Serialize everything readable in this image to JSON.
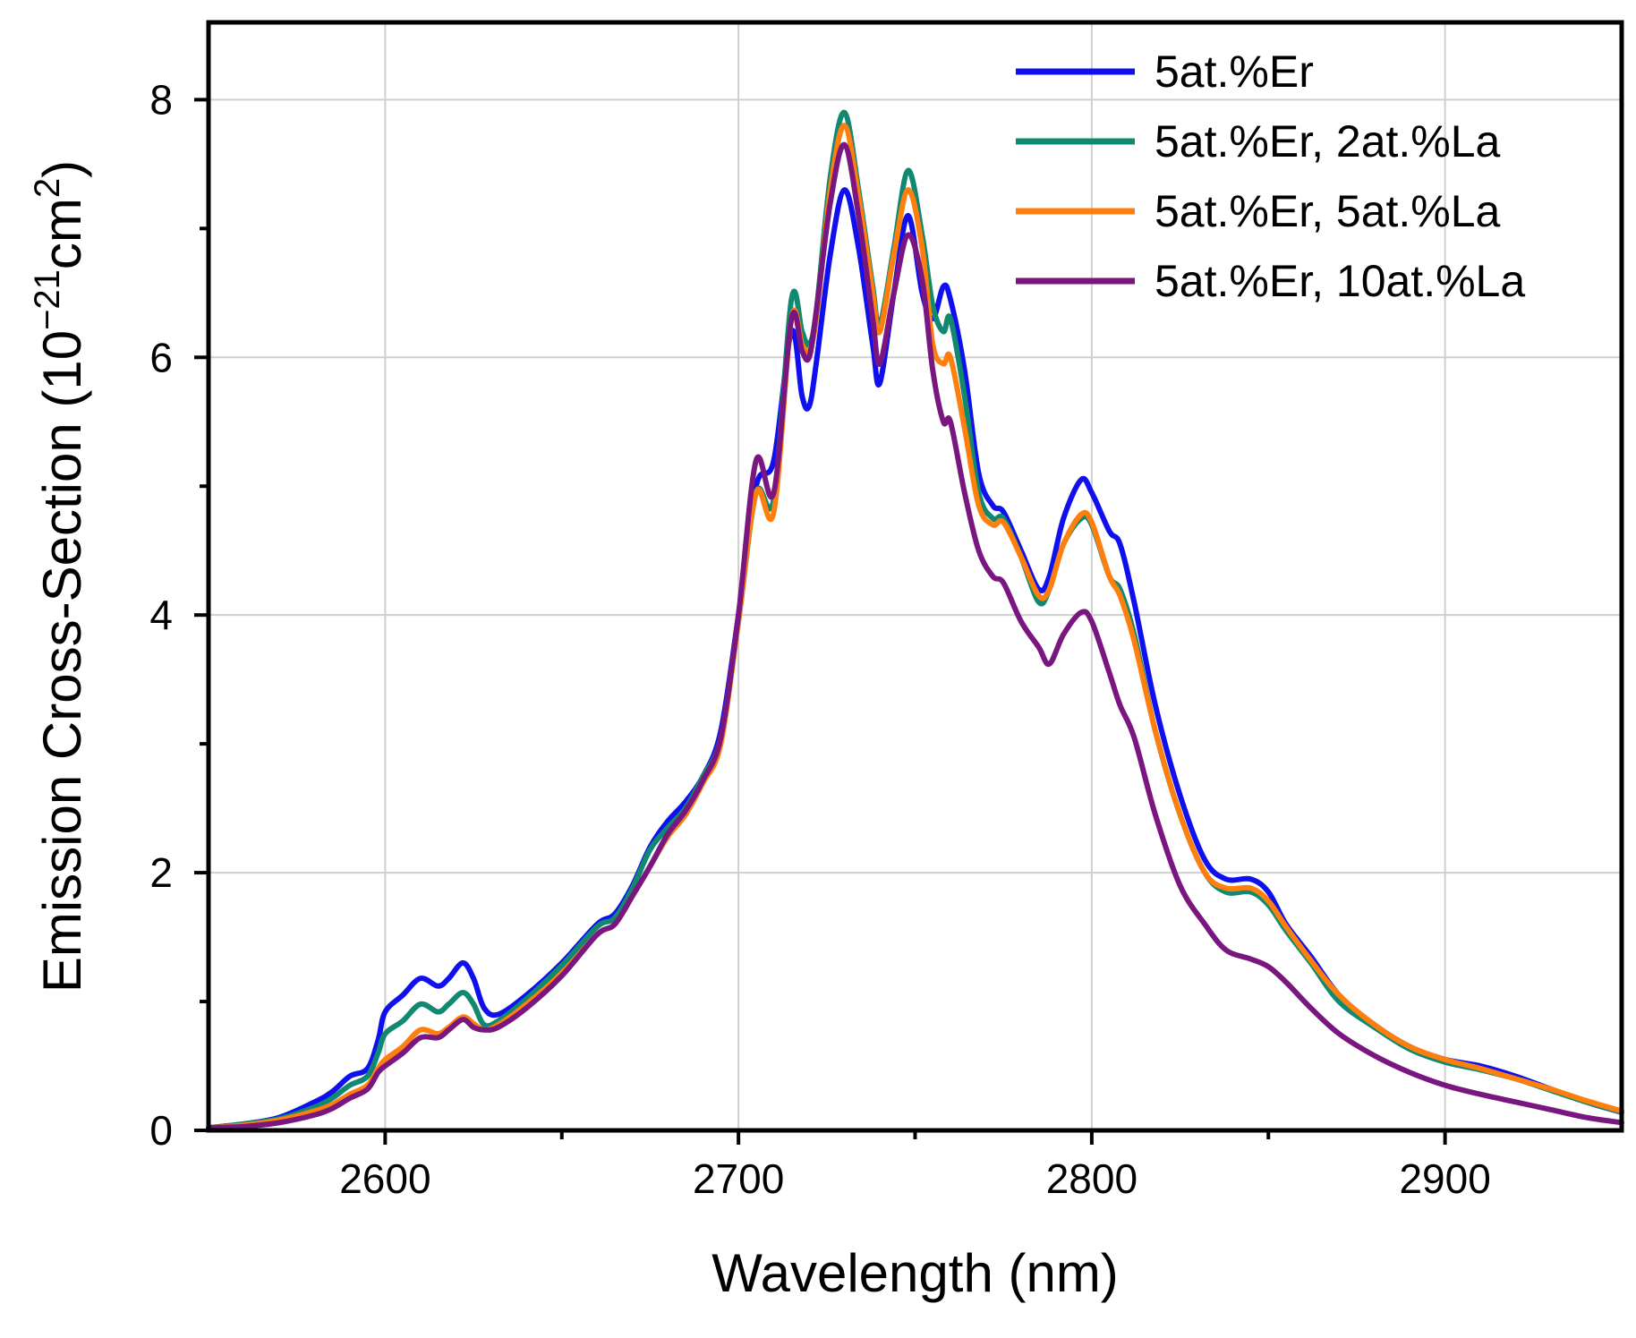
{
  "chart_data": {
    "type": "line",
    "title": "",
    "xlabel": "Wavelength (nm)",
    "ylabel_main": "Emission Cross-Section (10",
    "ylabel_sup1": "−21",
    "ylabel_mid": "cm",
    "ylabel_sup2": "2",
    "ylabel_end": ")",
    "xlim": [
      2550,
      2950
    ],
    "ylim": [
      0,
      8.6
    ],
    "xticks": [
      2600,
      2700,
      2800,
      2900
    ],
    "xticks_minor": [
      2650,
      2750,
      2850
    ],
    "yticks": [
      0,
      2,
      4,
      6,
      8
    ],
    "grid": true,
    "legend_position": "top-right",
    "series": [
      {
        "name": "5at.%Er",
        "color": "#1010ee",
        "x": [
          2550,
          2560,
          2570,
          2580,
          2585,
          2590,
          2595,
          2598,
          2600,
          2605,
          2610,
          2615,
          2618,
          2622,
          2625,
          2628,
          2632,
          2640,
          2650,
          2660,
          2665,
          2670,
          2675,
          2680,
          2685,
          2690,
          2695,
          2700,
          2705,
          2710,
          2715,
          2718,
          2720,
          2722,
          2726,
          2730,
          2734,
          2738,
          2740,
          2744,
          2748,
          2752,
          2755,
          2758,
          2760,
          2764,
          2768,
          2772,
          2775,
          2780,
          2785,
          2788,
          2792,
          2797,
          2800,
          2805,
          2808,
          2812,
          2818,
          2825,
          2832,
          2838,
          2845,
          2850,
          2855,
          2862,
          2870,
          2880,
          2890,
          2900,
          2910,
          2920,
          2930,
          2940,
          2950
        ],
        "y": [
          0.02,
          0.05,
          0.1,
          0.22,
          0.3,
          0.42,
          0.48,
          0.7,
          0.92,
          1.05,
          1.18,
          1.12,
          1.18,
          1.3,
          1.18,
          0.95,
          0.9,
          1.05,
          1.3,
          1.6,
          1.68,
          1.9,
          2.2,
          2.4,
          2.55,
          2.75,
          3.1,
          4.0,
          5.0,
          5.2,
          6.2,
          5.7,
          5.62,
          5.95,
          6.8,
          7.3,
          6.85,
          6.1,
          5.8,
          6.5,
          7.1,
          6.5,
          6.3,
          6.55,
          6.45,
          5.9,
          5.1,
          4.85,
          4.8,
          4.5,
          4.2,
          4.3,
          4.75,
          5.05,
          4.95,
          4.65,
          4.55,
          4.1,
          3.3,
          2.6,
          2.1,
          1.95,
          1.95,
          1.85,
          1.6,
          1.35,
          1.05,
          0.82,
          0.65,
          0.55,
          0.5,
          0.42,
          0.32,
          0.22,
          0.14
        ]
      },
      {
        "name": "5at.%Er, 2at.%La",
        "color": "#118870",
        "x": [
          2550,
          2560,
          2570,
          2580,
          2585,
          2590,
          2595,
          2598,
          2600,
          2605,
          2610,
          2615,
          2618,
          2622,
          2625,
          2628,
          2632,
          2640,
          2650,
          2660,
          2665,
          2670,
          2675,
          2680,
          2685,
          2690,
          2695,
          2700,
          2705,
          2710,
          2715,
          2718,
          2720,
          2722,
          2726,
          2730,
          2734,
          2738,
          2740,
          2744,
          2748,
          2752,
          2755,
          2758,
          2760,
          2764,
          2768,
          2772,
          2775,
          2780,
          2785,
          2788,
          2792,
          2797,
          2800,
          2805,
          2808,
          2812,
          2818,
          2825,
          2832,
          2838,
          2845,
          2850,
          2855,
          2862,
          2870,
          2880,
          2890,
          2900,
          2910,
          2920,
          2930,
          2940,
          2950
        ],
        "y": [
          0.02,
          0.05,
          0.09,
          0.18,
          0.25,
          0.35,
          0.42,
          0.6,
          0.75,
          0.85,
          0.98,
          0.92,
          0.98,
          1.07,
          0.98,
          0.82,
          0.85,
          1.02,
          1.28,
          1.58,
          1.65,
          1.88,
          2.18,
          2.35,
          2.5,
          2.75,
          3.05,
          3.95,
          4.95,
          4.9,
          6.45,
          6.2,
          6.1,
          6.35,
          7.4,
          7.9,
          7.3,
          6.55,
          6.25,
          6.85,
          7.45,
          6.95,
          6.4,
          6.2,
          6.3,
          5.7,
          4.95,
          4.75,
          4.75,
          4.45,
          4.1,
          4.2,
          4.55,
          4.75,
          4.7,
          4.3,
          4.2,
          3.85,
          3.1,
          2.45,
          2.0,
          1.85,
          1.85,
          1.75,
          1.55,
          1.3,
          1.0,
          0.8,
          0.63,
          0.53,
          0.47,
          0.4,
          0.31,
          0.22,
          0.14
        ]
      },
      {
        "name": "5at.%Er, 5at.%La",
        "color": "#ff7f0e",
        "x": [
          2550,
          2560,
          2570,
          2580,
          2585,
          2590,
          2595,
          2598,
          2600,
          2605,
          2610,
          2615,
          2618,
          2622,
          2625,
          2628,
          2632,
          2640,
          2650,
          2660,
          2665,
          2670,
          2675,
          2680,
          2685,
          2690,
          2695,
          2700,
          2705,
          2710,
          2715,
          2718,
          2720,
          2722,
          2726,
          2730,
          2734,
          2738,
          2740,
          2744,
          2748,
          2752,
          2755,
          2758,
          2760,
          2764,
          2768,
          2772,
          2775,
          2780,
          2785,
          2788,
          2792,
          2797,
          2800,
          2805,
          2808,
          2812,
          2818,
          2825,
          2832,
          2838,
          2845,
          2850,
          2855,
          2862,
          2870,
          2880,
          2890,
          2900,
          2910,
          2920,
          2930,
          2940,
          2950
        ],
        "y": [
          0.02,
          0.04,
          0.08,
          0.15,
          0.2,
          0.28,
          0.35,
          0.48,
          0.55,
          0.65,
          0.78,
          0.75,
          0.8,
          0.88,
          0.83,
          0.78,
          0.82,
          0.98,
          1.22,
          1.52,
          1.6,
          1.82,
          2.05,
          2.28,
          2.45,
          2.7,
          3.0,
          3.95,
          4.95,
          4.8,
          6.3,
          6.1,
          6.05,
          6.3,
          7.3,
          7.8,
          7.25,
          6.5,
          6.2,
          6.8,
          7.3,
          6.85,
          6.1,
          5.95,
          6.0,
          5.45,
          4.85,
          4.7,
          4.72,
          4.45,
          4.15,
          4.2,
          4.55,
          4.78,
          4.72,
          4.3,
          4.15,
          3.8,
          3.1,
          2.45,
          2.0,
          1.88,
          1.88,
          1.78,
          1.58,
          1.32,
          1.05,
          0.82,
          0.65,
          0.55,
          0.48,
          0.4,
          0.32,
          0.23,
          0.15
        ]
      },
      {
        "name": "5at.%Er, 10at.%La",
        "color": "#7a1680",
        "x": [
          2550,
          2560,
          2570,
          2580,
          2585,
          2590,
          2595,
          2598,
          2600,
          2605,
          2610,
          2615,
          2618,
          2622,
          2625,
          2628,
          2632,
          2640,
          2650,
          2660,
          2665,
          2670,
          2675,
          2680,
          2685,
          2690,
          2695,
          2700,
          2705,
          2710,
          2715,
          2718,
          2720,
          2722,
          2726,
          2730,
          2734,
          2738,
          2740,
          2744,
          2748,
          2752,
          2755,
          2758,
          2760,
          2764,
          2768,
          2772,
          2775,
          2780,
          2785,
          2788,
          2792,
          2797,
          2800,
          2805,
          2808,
          2812,
          2818,
          2825,
          2832,
          2838,
          2845,
          2850,
          2855,
          2862,
          2870,
          2880,
          2890,
          2900,
          2910,
          2920,
          2930,
          2940,
          2950
        ],
        "y": [
          0.02,
          0.03,
          0.06,
          0.12,
          0.17,
          0.25,
          0.32,
          0.45,
          0.5,
          0.6,
          0.72,
          0.72,
          0.78,
          0.86,
          0.8,
          0.78,
          0.8,
          0.95,
          1.2,
          1.52,
          1.6,
          1.82,
          2.05,
          2.3,
          2.48,
          2.72,
          3.05,
          4.0,
          5.2,
          4.95,
          6.3,
          6.05,
          6.0,
          6.35,
          7.2,
          7.65,
          7.1,
          6.3,
          5.95,
          6.5,
          6.95,
          6.6,
          5.9,
          5.5,
          5.5,
          4.95,
          4.5,
          4.3,
          4.25,
          3.95,
          3.75,
          3.62,
          3.85,
          4.02,
          3.95,
          3.55,
          3.3,
          3.05,
          2.45,
          1.9,
          1.6,
          1.4,
          1.33,
          1.27,
          1.15,
          0.95,
          0.75,
          0.58,
          0.45,
          0.35,
          0.28,
          0.22,
          0.16,
          0.1,
          0.06
        ]
      }
    ]
  }
}
